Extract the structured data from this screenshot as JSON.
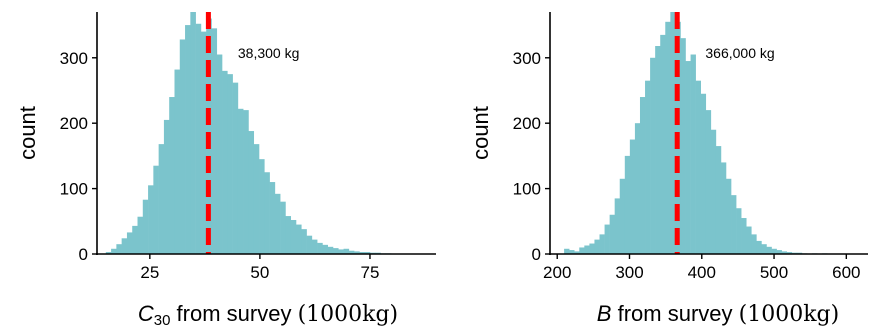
{
  "colors": {
    "bar": "#7bc4cc",
    "mean_line": "#ff0000",
    "axis": "#000000"
  },
  "chart_data": [
    {
      "type": "bar",
      "subtype": "histogram",
      "xlabel_main": "C",
      "xlabel_sub": "30",
      "xlabel_rest": " from survey ",
      "xlabel_unit": "(1000kg)",
      "ylabel": "count",
      "xlim": [
        13,
        90
      ],
      "ylim": [
        0,
        370
      ],
      "xticks": [
        25,
        50,
        75
      ],
      "yticks": [
        0,
        100,
        200,
        300
      ],
      "bin_width": 1.2,
      "bins": [
        {
          "x": 15.6,
          "count": 3
        },
        {
          "x": 16.8,
          "count": 8
        },
        {
          "x": 18.0,
          "count": 15
        },
        {
          "x": 19.2,
          "count": 24
        },
        {
          "x": 20.4,
          "count": 33
        },
        {
          "x": 21.6,
          "count": 43
        },
        {
          "x": 22.8,
          "count": 57
        },
        {
          "x": 24.0,
          "count": 83
        },
        {
          "x": 25.2,
          "count": 105
        },
        {
          "x": 26.4,
          "count": 135
        },
        {
          "x": 27.6,
          "count": 168
        },
        {
          "x": 28.8,
          "count": 205
        },
        {
          "x": 30.0,
          "count": 240
        },
        {
          "x": 31.2,
          "count": 282
        },
        {
          "x": 32.4,
          "count": 328
        },
        {
          "x": 33.6,
          "count": 350
        },
        {
          "x": 34.8,
          "count": 370
        },
        {
          "x": 36.0,
          "count": 352
        },
        {
          "x": 37.2,
          "count": 340
        },
        {
          "x": 38.4,
          "count": 360
        },
        {
          "x": 39.6,
          "count": 345
        },
        {
          "x": 40.8,
          "count": 305
        },
        {
          "x": 42.0,
          "count": 280
        },
        {
          "x": 43.2,
          "count": 275
        },
        {
          "x": 44.4,
          "count": 262
        },
        {
          "x": 45.6,
          "count": 222
        },
        {
          "x": 46.8,
          "count": 220
        },
        {
          "x": 48.0,
          "count": 188
        },
        {
          "x": 49.2,
          "count": 168
        },
        {
          "x": 50.4,
          "count": 145
        },
        {
          "x": 51.6,
          "count": 125
        },
        {
          "x": 52.8,
          "count": 110
        },
        {
          "x": 54.0,
          "count": 92
        },
        {
          "x": 55.2,
          "count": 80
        },
        {
          "x": 56.4,
          "count": 58
        },
        {
          "x": 57.6,
          "count": 52
        },
        {
          "x": 58.8,
          "count": 45
        },
        {
          "x": 60.0,
          "count": 38
        },
        {
          "x": 61.2,
          "count": 28
        },
        {
          "x": 62.4,
          "count": 22
        },
        {
          "x": 63.6,
          "count": 17
        },
        {
          "x": 64.8,
          "count": 14
        },
        {
          "x": 66.0,
          "count": 11
        },
        {
          "x": 67.2,
          "count": 9
        },
        {
          "x": 68.4,
          "count": 7
        },
        {
          "x": 69.6,
          "count": 8
        },
        {
          "x": 70.8,
          "count": 5
        },
        {
          "x": 72.0,
          "count": 4
        },
        {
          "x": 73.2,
          "count": 3
        },
        {
          "x": 74.4,
          "count": 3
        },
        {
          "x": 75.6,
          "count": 2
        },
        {
          "x": 76.8,
          "count": 2
        },
        {
          "x": 78.0,
          "count": 1
        },
        {
          "x": 79.2,
          "count": 1
        }
      ],
      "mean": 38.3,
      "annotation": "38,300 kg",
      "annotation_pos": {
        "x": 45,
        "y": 300
      },
      "grid": false
    },
    {
      "type": "bar",
      "subtype": "histogram",
      "xlabel_main": "B",
      "xlabel_sub": "",
      "xlabel_rest": " from survey ",
      "xlabel_unit": "(1000kg)",
      "ylabel": "count",
      "xlim": [
        190,
        630
      ],
      "ylim": [
        0,
        370
      ],
      "xticks": [
        200,
        300,
        400,
        500,
        600
      ],
      "yticks": [
        0,
        100,
        200,
        300
      ],
      "bin_width": 7,
      "bins": [
        {
          "x": 213,
          "count": 8
        },
        {
          "x": 220,
          "count": 6
        },
        {
          "x": 227,
          "count": 4
        },
        {
          "x": 234,
          "count": 10
        },
        {
          "x": 241,
          "count": 13
        },
        {
          "x": 248,
          "count": 16
        },
        {
          "x": 255,
          "count": 22
        },
        {
          "x": 262,
          "count": 30
        },
        {
          "x": 269,
          "count": 45
        },
        {
          "x": 276,
          "count": 60
        },
        {
          "x": 283,
          "count": 85
        },
        {
          "x": 290,
          "count": 115
        },
        {
          "x": 297,
          "count": 150
        },
        {
          "x": 304,
          "count": 175
        },
        {
          "x": 311,
          "count": 200
        },
        {
          "x": 318,
          "count": 240
        },
        {
          "x": 325,
          "count": 265
        },
        {
          "x": 332,
          "count": 300
        },
        {
          "x": 339,
          "count": 318
        },
        {
          "x": 346,
          "count": 335
        },
        {
          "x": 353,
          "count": 355
        },
        {
          "x": 360,
          "count": 370
        },
        {
          "x": 367,
          "count": 355
        },
        {
          "x": 374,
          "count": 330
        },
        {
          "x": 381,
          "count": 295
        },
        {
          "x": 388,
          "count": 305
        },
        {
          "x": 395,
          "count": 265
        },
        {
          "x": 402,
          "count": 245
        },
        {
          "x": 409,
          "count": 220
        },
        {
          "x": 416,
          "count": 190
        },
        {
          "x": 423,
          "count": 165
        },
        {
          "x": 430,
          "count": 140
        },
        {
          "x": 437,
          "count": 115
        },
        {
          "x": 444,
          "count": 90
        },
        {
          "x": 451,
          "count": 70
        },
        {
          "x": 458,
          "count": 55
        },
        {
          "x": 465,
          "count": 42
        },
        {
          "x": 472,
          "count": 30
        },
        {
          "x": 479,
          "count": 20
        },
        {
          "x": 486,
          "count": 15
        },
        {
          "x": 493,
          "count": 11
        },
        {
          "x": 500,
          "count": 8
        },
        {
          "x": 507,
          "count": 6
        },
        {
          "x": 514,
          "count": 4
        },
        {
          "x": 521,
          "count": 3
        },
        {
          "x": 528,
          "count": 2
        },
        {
          "x": 535,
          "count": 2
        },
        {
          "x": 542,
          "count": 1
        },
        {
          "x": 556,
          "count": 1
        },
        {
          "x": 570,
          "count": 1
        }
      ],
      "mean": 366,
      "annotation": "366,000 kg",
      "annotation_pos": {
        "x": 405,
        "y": 300
      },
      "grid": false
    }
  ]
}
